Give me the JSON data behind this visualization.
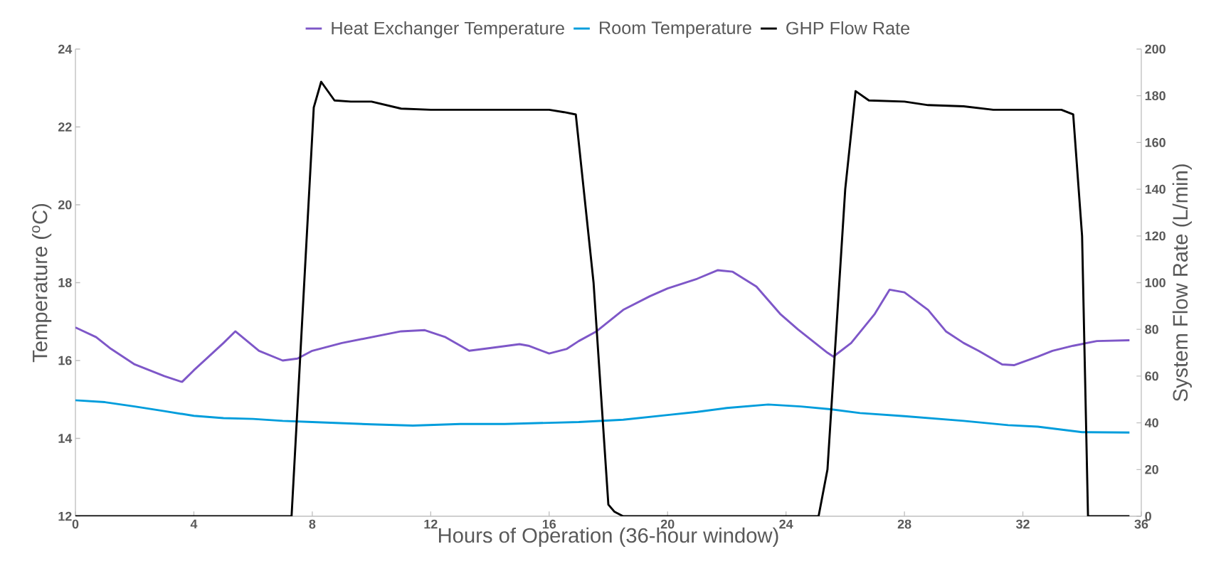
{
  "chart_data": {
    "type": "line",
    "xlabel": "Hours of Operation (36-hour window)",
    "ylabel": "Temperature ($^{o}$C)",
    "y2label": "System Flow Rate (L/min)",
    "xlim": [
      0,
      36
    ],
    "xticks": [
      0,
      4,
      8,
      12,
      16,
      20,
      24,
      28,
      32,
      36
    ],
    "ylim": [
      12,
      24
    ],
    "yticks": [
      12,
      14,
      16,
      18,
      20,
      22,
      24
    ],
    "y2lim": [
      0,
      200
    ],
    "y2ticks": [
      0,
      20,
      40,
      60,
      80,
      100,
      120,
      140,
      160,
      180,
      200
    ],
    "legend": "top",
    "marker": "none",
    "line_style": "solid",
    "series": [
      {
        "name": "Heat Exchanger Temperature",
        "color": "#7e57c8",
        "x": [
          0,
          0.7,
          1.2,
          2,
          3,
          3.6,
          4,
          5,
          5.4,
          6.2,
          7,
          7.5,
          8,
          9,
          10,
          11,
          11.8,
          12.5,
          13.3,
          14,
          15,
          15.3,
          16,
          16.6,
          17,
          17.6,
          18.5,
          19.4,
          20,
          21,
          21.7,
          22.2,
          23,
          23.8,
          24.4,
          25.4,
          25.6,
          26.2,
          27,
          27.5,
          28,
          28.8,
          29.4,
          30,
          30.5,
          31.3,
          31.7,
          32.5,
          33,
          33.7,
          34.5,
          35.6
        ],
        "values": [
          16.85,
          16.6,
          16.3,
          15.9,
          15.6,
          15.45,
          15.75,
          16.45,
          16.75,
          16.25,
          16.0,
          16.05,
          16.25,
          16.45,
          16.6,
          16.75,
          16.78,
          16.6,
          16.25,
          16.32,
          16.42,
          16.38,
          16.18,
          16.3,
          16.5,
          16.75,
          17.3,
          17.65,
          17.85,
          18.1,
          18.32,
          18.28,
          17.9,
          17.2,
          16.8,
          16.2,
          16.1,
          16.45,
          17.2,
          17.82,
          17.75,
          17.3,
          16.75,
          16.45,
          16.25,
          15.9,
          15.88,
          16.1,
          16.25,
          16.38,
          16.5,
          16.52
        ]
      },
      {
        "name": "Room Temperature",
        "color": "#009ddc",
        "x": [
          0,
          1,
          2,
          3,
          4,
          5,
          6,
          7,
          8,
          10,
          11.4,
          13,
          14.5,
          16,
          17,
          18.5,
          20,
          21,
          22,
          23.4,
          24.5,
          25.5,
          26.5,
          28,
          30,
          31.5,
          32.5,
          34,
          35.6
        ],
        "values": [
          14.98,
          14.93,
          14.82,
          14.7,
          14.58,
          14.52,
          14.5,
          14.45,
          14.42,
          14.36,
          14.33,
          14.37,
          14.37,
          14.4,
          14.42,
          14.48,
          14.6,
          14.68,
          14.78,
          14.87,
          14.82,
          14.75,
          14.65,
          14.57,
          14.45,
          14.34,
          14.3,
          14.16,
          14.15
        ]
      },
      {
        "name": "GHP Flow Rate",
        "color": "#000000",
        "axis": "y2",
        "x": [
          0,
          7.3,
          8.05,
          8.3,
          8.75,
          9.3,
          10,
          11,
          12,
          14,
          16,
          16.5,
          16.9,
          17.5,
          18.0,
          18.2,
          18.5,
          25.1,
          25.4,
          26.0,
          26.35,
          26.8,
          28,
          28.8,
          30,
          31,
          33.3,
          33.7,
          34.0,
          34.2,
          35.6
        ],
        "values": [
          0,
          0,
          175,
          186,
          178,
          177.5,
          177.5,
          174.5,
          174,
          174,
          174,
          173,
          172,
          100,
          5,
          2,
          0,
          0,
          20,
          140,
          182,
          178,
          177.5,
          176,
          175.5,
          174,
          174,
          172,
          120,
          0,
          0
        ]
      }
    ]
  }
}
